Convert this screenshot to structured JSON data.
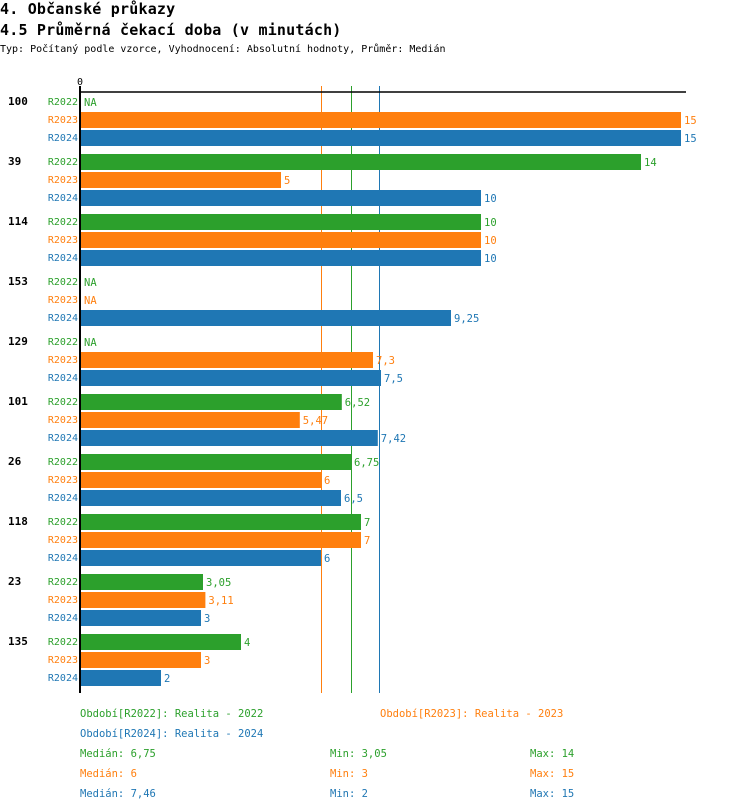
{
  "header": {
    "section_title": "4. Občanské průkazy",
    "chart_title": "4.5 Průměrná čekací doba (v minutách)",
    "subtitle": "Typ: Počítaný podle vzorce, Vyhodnocení: Absolutní hodnoty, Průměr: Medián"
  },
  "colors": {
    "R2022": "#2ca02c",
    "R2023": "#ff7f0e",
    "R2024": "#1f77b4",
    "axis": "#000000"
  },
  "chart_data": {
    "type": "bar",
    "orientation": "horizontal",
    "title": "4.5 Průměrná čekací doba (v minutách)",
    "xlabel": "",
    "ylabel": "",
    "xlim": [
      0,
      15
    ],
    "x_tick_labels": [
      "0"
    ],
    "grid": false,
    "categories": [
      "100",
      "39",
      "114",
      "153",
      "129",
      "101",
      "26",
      "118",
      "23",
      "135"
    ],
    "series": [
      {
        "name": "R2022",
        "values": [
          null,
          14,
          10,
          null,
          null,
          6.52,
          6.75,
          7,
          3.05,
          4
        ],
        "labels": [
          "NA",
          "14",
          "10",
          "NA",
          "NA",
          "6,52",
          "6,75",
          "7",
          "3,05",
          "4"
        ]
      },
      {
        "name": "R2023",
        "values": [
          15,
          5,
          10,
          null,
          7.3,
          5.47,
          6,
          7,
          3.11,
          3
        ],
        "labels": [
          "15",
          "5",
          "10",
          "NA",
          "7,3",
          "5,47",
          "6",
          "7",
          "3,11",
          "3"
        ]
      },
      {
        "name": "R2024",
        "values": [
          15,
          10,
          10,
          9.25,
          7.5,
          7.42,
          6.5,
          6,
          3,
          2
        ],
        "labels": [
          "15",
          "10",
          "10",
          "9,25",
          "7,5",
          "7,42",
          "6,5",
          "6",
          "3",
          "2"
        ]
      }
    ],
    "median_lines": [
      {
        "series": "R2023",
        "value": 6
      },
      {
        "series": "R2022",
        "value": 6.75
      },
      {
        "series": "R2024",
        "value": 7.46
      }
    ],
    "legend_position": "bottom"
  },
  "legend": {
    "periods": [
      {
        "series": "R2022",
        "text": "Období[R2022]: Realita - 2022"
      },
      {
        "series": "R2023",
        "text": "Období[R2023]: Realita - 2023"
      },
      {
        "series": "R2024",
        "text": "Období[R2024]: Realita - 2024"
      }
    ],
    "stats": [
      {
        "series": "R2022",
        "median": "Medián: 6,75",
        "min": "Min: 3,05",
        "max": "Max: 14"
      },
      {
        "series": "R2023",
        "median": "Medián: 6",
        "min": "Min: 3",
        "max": "Max: 15"
      },
      {
        "series": "R2024",
        "median": "Medián: 7,46",
        "min": "Min: 2",
        "max": "Max: 15"
      }
    ]
  }
}
